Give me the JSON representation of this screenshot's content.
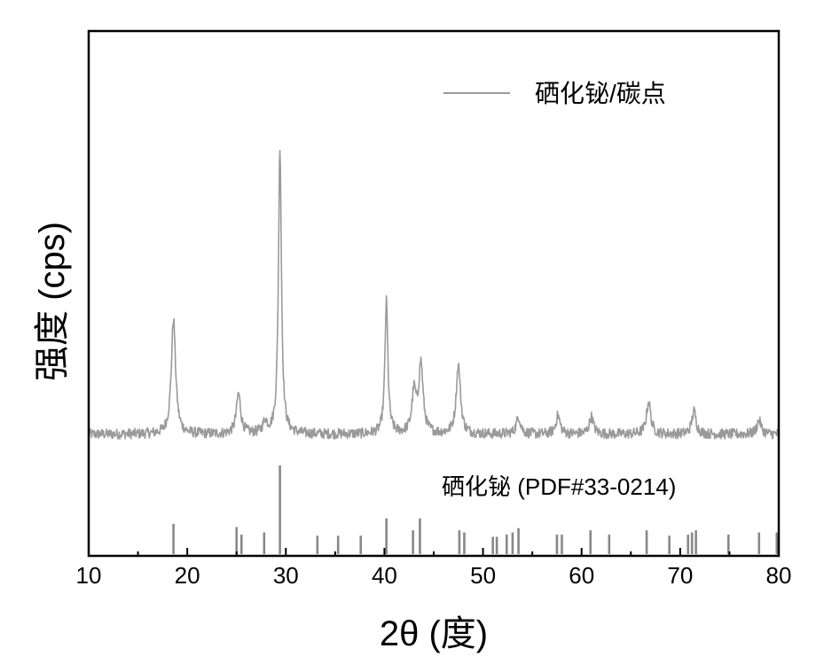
{
  "chart_data": {
    "type": "line",
    "xlabel": "2θ (度)",
    "ylabel": "强度 (cps)",
    "xlim": [
      10,
      80
    ],
    "x_ticks": [
      10,
      20,
      30,
      40,
      50,
      60,
      70,
      80
    ],
    "grid": false,
    "legend_position": "top-right",
    "series": [
      {
        "name": "硒化铋/碳点",
        "color": "#9a9a9a",
        "baseline": 4,
        "peaks": [
          {
            "two_theta": 18.6,
            "intensity": 100
          },
          {
            "two_theta": 25.2,
            "intensity": 35
          },
          {
            "two_theta": 27.9,
            "intensity": 10
          },
          {
            "two_theta": 29.4,
            "intensity": 250
          },
          {
            "two_theta": 40.2,
            "intensity": 115
          },
          {
            "two_theta": 43.0,
            "intensity": 35
          },
          {
            "two_theta": 43.7,
            "intensity": 60
          },
          {
            "two_theta": 47.5,
            "intensity": 60
          },
          {
            "two_theta": 53.6,
            "intensity": 15
          },
          {
            "two_theta": 57.6,
            "intensity": 16
          },
          {
            "two_theta": 61.0,
            "intensity": 15
          },
          {
            "two_theta": 66.8,
            "intensity": 28
          },
          {
            "two_theta": 71.4,
            "intensity": 20
          },
          {
            "two_theta": 78.0,
            "intensity": 12
          }
        ]
      }
    ],
    "reference": {
      "label": "硒化铋 (PDF#33-0214)",
      "color": "#888888",
      "lines": [
        {
          "two_theta": 18.6,
          "intensity": 28
        },
        {
          "two_theta": 25.0,
          "intensity": 25
        },
        {
          "two_theta": 25.5,
          "intensity": 18
        },
        {
          "two_theta": 27.8,
          "intensity": 20
        },
        {
          "two_theta": 29.4,
          "intensity": 82
        },
        {
          "two_theta": 33.2,
          "intensity": 17
        },
        {
          "two_theta": 35.3,
          "intensity": 17
        },
        {
          "two_theta": 37.6,
          "intensity": 17
        },
        {
          "two_theta": 40.2,
          "intensity": 33
        },
        {
          "two_theta": 42.9,
          "intensity": 22
        },
        {
          "two_theta": 43.6,
          "intensity": 33
        },
        {
          "two_theta": 47.6,
          "intensity": 22
        },
        {
          "two_theta": 48.1,
          "intensity": 20
        },
        {
          "two_theta": 51.0,
          "intensity": 16
        },
        {
          "two_theta": 51.4,
          "intensity": 16
        },
        {
          "two_theta": 52.4,
          "intensity": 18
        },
        {
          "two_theta": 53.0,
          "intensity": 20
        },
        {
          "two_theta": 53.6,
          "intensity": 24
        },
        {
          "two_theta": 57.5,
          "intensity": 18
        },
        {
          "two_theta": 58.0,
          "intensity": 18
        },
        {
          "two_theta": 60.9,
          "intensity": 22
        },
        {
          "two_theta": 62.8,
          "intensity": 18
        },
        {
          "two_theta": 66.6,
          "intensity": 22
        },
        {
          "two_theta": 68.9,
          "intensity": 17
        },
        {
          "two_theta": 70.8,
          "intensity": 18
        },
        {
          "two_theta": 71.2,
          "intensity": 20
        },
        {
          "two_theta": 71.6,
          "intensity": 22
        },
        {
          "two_theta": 74.9,
          "intensity": 18
        },
        {
          "two_theta": 78.0,
          "intensity": 20
        },
        {
          "two_theta": 79.8,
          "intensity": 20
        }
      ]
    }
  }
}
